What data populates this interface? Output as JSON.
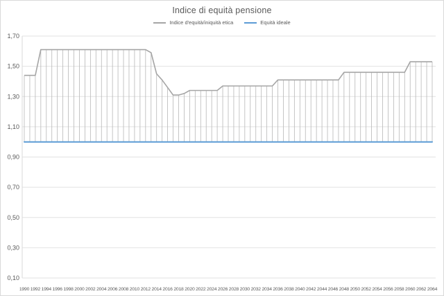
{
  "window": {
    "background": "#ffffff",
    "border_color": "#d9d9d9"
  },
  "chart_data": {
    "type": "line",
    "title": "Indice di equità pensione",
    "legend_position": "top",
    "grid": "horizontal",
    "gridline_color": "#e2e2e2",
    "axis_line_color": "#d9d9d9",
    "high_low_lines": true,
    "high_low_line_color": "#b7b7b7",
    "ylim": [
      0.1,
      1.7
    ],
    "y_tick_step": 0.2,
    "y_tick_labels": [
      "1,70",
      "1,50",
      "1,30",
      "1,10",
      "0,90",
      "0,70",
      "0,50",
      "0,30",
      "0,10"
    ],
    "y_tick_values": [
      1.7,
      1.5,
      1.3,
      1.1,
      0.9,
      0.7,
      0.5,
      0.3,
      0.1
    ],
    "x_tick_labels": [
      "1990",
      "1992",
      "1994",
      "1996",
      "1998",
      "2000",
      "2002",
      "2004",
      "2006",
      "2008",
      "2010",
      "2012",
      "2014",
      "2016",
      "2018",
      "2020",
      "2022",
      "2024",
      "2026",
      "2028",
      "2030",
      "2032",
      "2034",
      "2036",
      "2038",
      "2040",
      "2042",
      "2044",
      "2046",
      "2048",
      "2050",
      "2052",
      "2054",
      "2056",
      "2058",
      "2060",
      "2062",
      "2064"
    ],
    "years": [
      1990,
      1991,
      1992,
      1993,
      1994,
      1995,
      1996,
      1997,
      1998,
      1999,
      2000,
      2001,
      2002,
      2003,
      2004,
      2005,
      2006,
      2007,
      2008,
      2009,
      2010,
      2011,
      2012,
      2013,
      2014,
      2015,
      2016,
      2017,
      2018,
      2019,
      2020,
      2021,
      2022,
      2023,
      2024,
      2025,
      2026,
      2027,
      2028,
      2029,
      2030,
      2031,
      2032,
      2033,
      2034,
      2035,
      2036,
      2037,
      2038,
      2039,
      2040,
      2041,
      2042,
      2043,
      2044,
      2045,
      2046,
      2047,
      2048,
      2049,
      2050,
      2051,
      2052,
      2053,
      2054,
      2055,
      2056,
      2057,
      2058,
      2059,
      2060,
      2061,
      2062,
      2063,
      2064
    ],
    "legend": [
      {
        "label": "Indice d'equità/iniquità etica",
        "color": "#a5a5a5"
      },
      {
        "label": "Equità ideale",
        "color": "#5b9bd5"
      }
    ],
    "series": [
      {
        "name": "Indice d'equità/iniquità etica",
        "color": "#a5a5a5",
        "values": [
          1.44,
          1.44,
          1.44,
          1.61,
          1.61,
          1.61,
          1.61,
          1.61,
          1.61,
          1.61,
          1.61,
          1.61,
          1.61,
          1.61,
          1.61,
          1.61,
          1.61,
          1.61,
          1.61,
          1.61,
          1.61,
          1.61,
          1.61,
          1.59,
          1.45,
          1.41,
          1.36,
          1.31,
          1.31,
          1.32,
          1.34,
          1.34,
          1.34,
          1.34,
          1.34,
          1.34,
          1.37,
          1.37,
          1.37,
          1.37,
          1.37,
          1.37,
          1.37,
          1.37,
          1.37,
          1.37,
          1.41,
          1.41,
          1.41,
          1.41,
          1.41,
          1.41,
          1.41,
          1.41,
          1.41,
          1.41,
          1.41,
          1.41,
          1.46,
          1.46,
          1.46,
          1.46,
          1.46,
          1.46,
          1.46,
          1.46,
          1.46,
          1.46,
          1.46,
          1.46,
          1.53,
          1.53,
          1.53,
          1.53,
          1.53
        ]
      },
      {
        "name": "Equità ideale",
        "color": "#5b9bd5",
        "constant_value": 1.0
      }
    ]
  }
}
